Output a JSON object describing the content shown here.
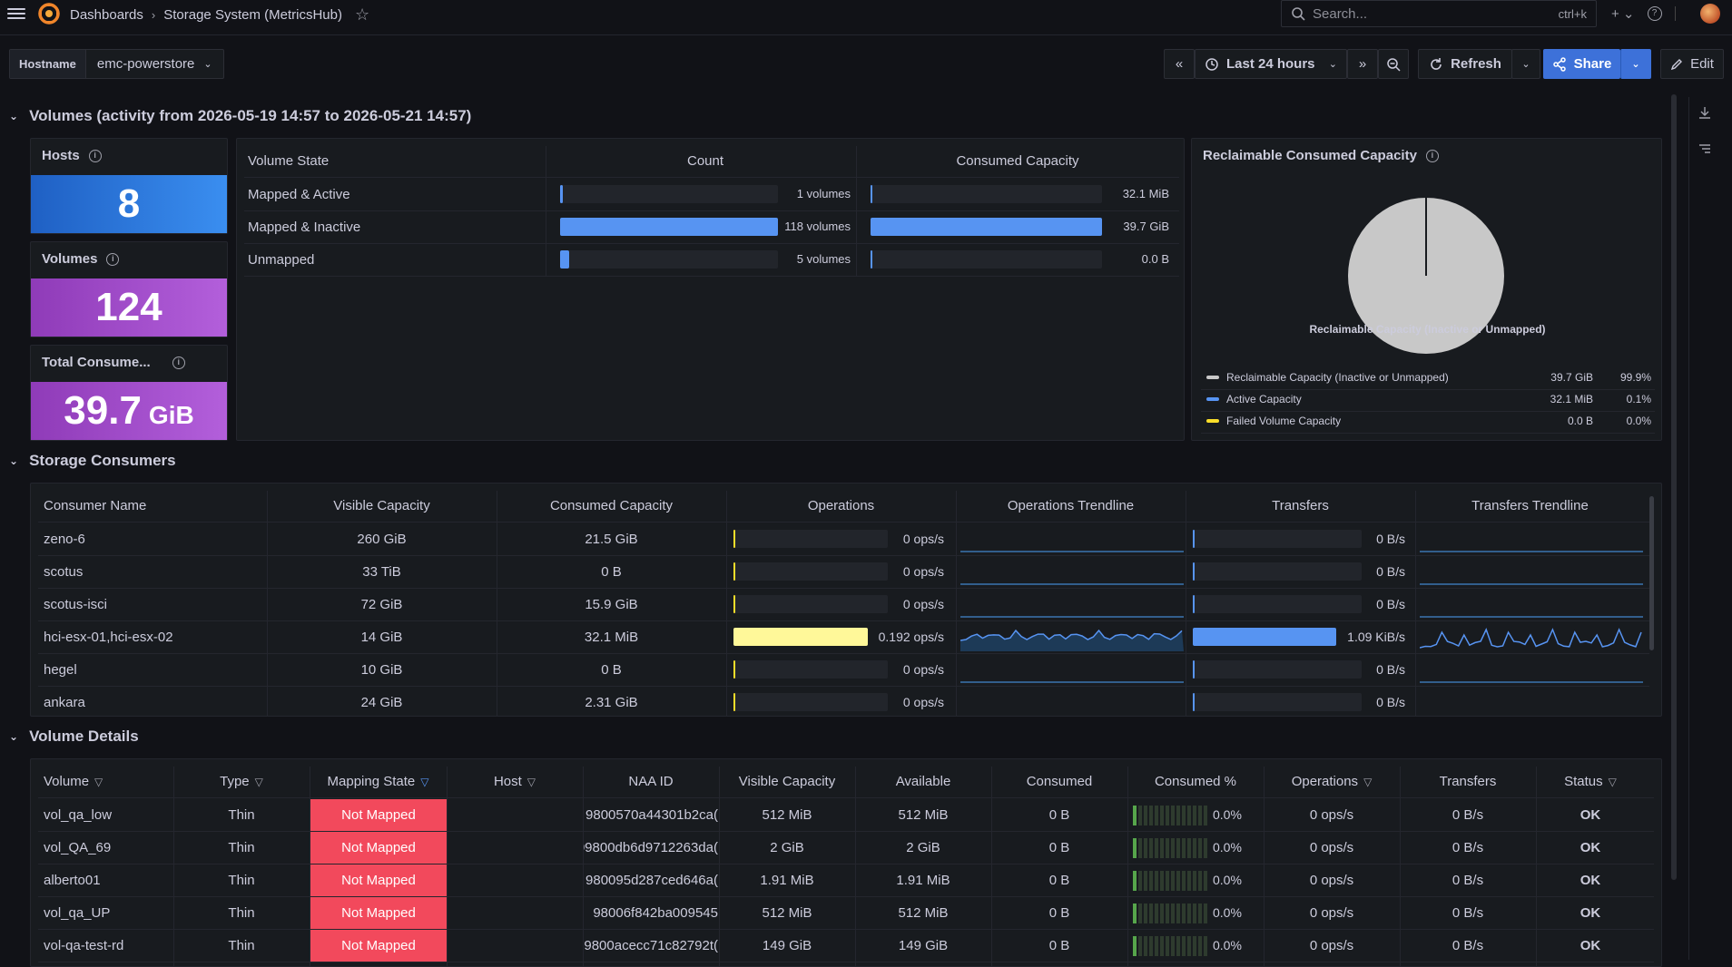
{
  "topbar": {
    "breadcrumb_root": "Dashboards",
    "breadcrumb_current": "Storage System (MetricsHub)",
    "search_placeholder": "Search...",
    "search_shortcut": "ctrl+k"
  },
  "toolbar": {
    "variable_label": "Hostname",
    "variable_value": "emc-powerstore",
    "time_range": "Last 24 hours",
    "refresh_label": "Refresh",
    "share_label": "Share",
    "edit_label": "Edit"
  },
  "volumes_section": {
    "title": "Volumes (activity from 2026-05-19 14:57 to 2026-05-21 14:57)",
    "stats": [
      {
        "title": "Hosts",
        "value": "8",
        "unit": "",
        "color": "#3274d9"
      },
      {
        "title": "Volumes",
        "value": "124",
        "unit": "",
        "color": "#a352cc"
      },
      {
        "title": "Total Consume...",
        "value": "39.7",
        "unit": "GiB",
        "color": "#a352cc"
      }
    ],
    "state_table": {
      "headers": [
        "Volume State",
        "Count",
        "Consumed Capacity"
      ],
      "rows": [
        {
          "state": "Mapped & Active",
          "count": "1 volumes",
          "count_frac": 0.008,
          "capacity": "32.1 MiB",
          "cap_frac": 0.001
        },
        {
          "state": "Mapped & Inactive",
          "count": "118 volumes",
          "count_frac": 1.0,
          "capacity": "39.7 GiB",
          "cap_frac": 1.0
        },
        {
          "state": "Unmapped",
          "count": "5 volumes",
          "count_frac": 0.042,
          "capacity": "0.0 B",
          "cap_frac": 0.0
        }
      ]
    },
    "pie": {
      "title": "Reclaimable Consumed Capacity",
      "slice_label": "Reclaimable Capacity (Inactive or Unmapped)",
      "legend": [
        {
          "name": "Reclaimable Capacity (Inactive or Unmapped)",
          "value": "39.7 GiB",
          "percent": "99.9%",
          "color": "#c8c8c8"
        },
        {
          "name": "Active Capacity",
          "value": "32.1 MiB",
          "percent": "0.1%",
          "color": "#5794f2"
        },
        {
          "name": "Failed Volume Capacity",
          "value": "0.0 B",
          "percent": "0.0%",
          "color": "#fade2a"
        }
      ]
    }
  },
  "consumers_section": {
    "title": "Storage Consumers",
    "headers": [
      "Consumer Name",
      "Visible Capacity",
      "Consumed Capacity",
      "Operations",
      "Operations Trendline",
      "Transfers",
      "Transfers Trendline"
    ],
    "rows": [
      {
        "name": "zeno-6",
        "visible": "260 GiB",
        "consumed": "21.5 GiB",
        "ops": "0 ops/s",
        "ops_frac": 0,
        "xfer": "0 B/s",
        "xfer_frac": 0,
        "active": false
      },
      {
        "name": "scotus",
        "visible": "33 TiB",
        "consumed": "0 B",
        "ops": "0 ops/s",
        "ops_frac": 0,
        "xfer": "0 B/s",
        "xfer_frac": 0,
        "active": false
      },
      {
        "name": "scotus-isci",
        "visible": "72 GiB",
        "consumed": "15.9 GiB",
        "ops": "0 ops/s",
        "ops_frac": 0,
        "xfer": "0 B/s",
        "xfer_frac": 0,
        "active": false
      },
      {
        "name": "hci-esx-01,hci-esx-02",
        "visible": "14 GiB",
        "consumed": "32.1 MiB",
        "ops": "0.192 ops/s",
        "ops_frac": 1,
        "xfer": "1.09 KiB/s",
        "xfer_frac": 1,
        "active": true
      },
      {
        "name": "hegel",
        "visible": "10 GiB",
        "consumed": "0 B",
        "ops": "0 ops/s",
        "ops_frac": 0,
        "xfer": "0 B/s",
        "xfer_frac": 0,
        "active": false
      },
      {
        "name": "ankara",
        "visible": "24 GiB",
        "consumed": "2.31 GiB",
        "ops": "0 ops/s",
        "ops_frac": 0,
        "xfer": "0 B/s",
        "xfer_frac": 0,
        "active": false
      }
    ]
  },
  "details_section": {
    "title": "Volume Details",
    "headers": [
      "Volume",
      "Type",
      "Mapping State",
      "Host",
      "NAA ID",
      "Visible Capacity",
      "Available",
      "Consumed",
      "Consumed %",
      "Operations",
      "Transfers",
      "Status"
    ],
    "rows": [
      {
        "volume": "vol_qa_low",
        "type": "Thin",
        "mapping": "Not Mapped",
        "host": "",
        "naa": ")9800570a44301b2ca",
        "visible": "512 MiB",
        "available": "512 MiB",
        "consumed": "0 B",
        "pct": "0.0%",
        "ops": "0 ops/s",
        "xfer": "0 B/s",
        "status": "OK"
      },
      {
        "volume": "vol_QA_69",
        "type": "Thin",
        "mapping": "Not Mapped",
        "host": "",
        "naa": ")09800db6d9712263da",
        "visible": "2 GiB",
        "available": "2 GiB",
        "consumed": "0 B",
        "pct": "0.0%",
        "ops": "0 ops/s",
        "xfer": "0 B/s",
        "status": "OK"
      },
      {
        "volume": "alberto01",
        "type": "Thin",
        "mapping": "Not Mapped",
        "host": "",
        "naa": ")980095d287ced646a",
        "visible": "1.91 MiB",
        "available": "1.91 MiB",
        "consumed": "0 B",
        "pct": "0.0%",
        "ops": "0 ops/s",
        "xfer": "0 B/s",
        "status": "OK"
      },
      {
        "volume": "vol_qa_UP",
        "type": "Thin",
        "mapping": "Not Mapped",
        "host": "",
        "naa": "98006f842ba009545",
        "visible": "512 MiB",
        "available": "512 MiB",
        "consumed": "0 B",
        "pct": "0.0%",
        "ops": "0 ops/s",
        "xfer": "0 B/s",
        "status": "OK"
      },
      {
        "volume": "vol-qa-test-rd",
        "type": "Thin",
        "mapping": "Not Mapped",
        "host": "",
        "naa": ")9800acecc71c82792t",
        "visible": "149 GiB",
        "available": "149 GiB",
        "consumed": "0 B",
        "pct": "0.0%",
        "ops": "0 ops/s",
        "xfer": "0 B/s",
        "status": "OK"
      }
    ]
  }
}
